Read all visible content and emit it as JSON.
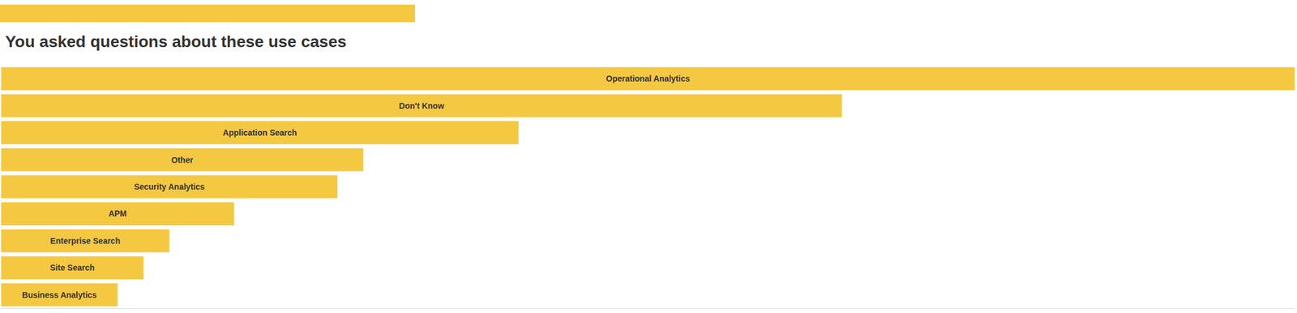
{
  "chart_data": {
    "type": "bar",
    "title": "You asked questions about these use cases",
    "orientation": "horizontal",
    "categories": [
      "Operational Analytics",
      "Don't Know",
      "Application Search",
      "Other",
      "Security Analytics",
      "APM",
      "Enterprise Search",
      "Site Search",
      "Business Analytics"
    ],
    "values": [
      1.0,
      0.65,
      0.4,
      0.28,
      0.26,
      0.18,
      0.13,
      0.11,
      0.09
    ],
    "color": "#F5C842",
    "xlim": [
      0,
      1
    ],
    "grid": false,
    "tick_labels": false
  }
}
